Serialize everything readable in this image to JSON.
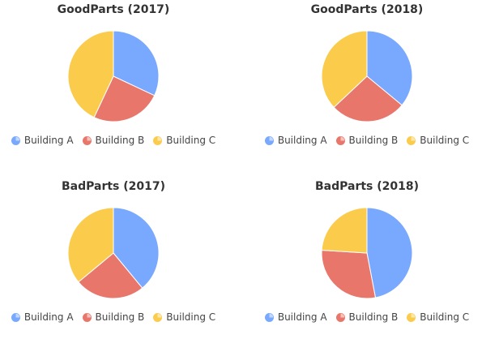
{
  "colors": {
    "Building A": "#79a8ff",
    "Building B": "#e8766b",
    "Building C": "#fbcb4c"
  },
  "chart_data": [
    {
      "type": "pie",
      "title": "GoodParts (2017)",
      "categories": [
        "Building A",
        "Building B",
        "Building C"
      ],
      "values": [
        32,
        25,
        43
      ],
      "legend": "bottom"
    },
    {
      "type": "pie",
      "title": "GoodParts (2018)",
      "categories": [
        "Building A",
        "Building B",
        "Building C"
      ],
      "values": [
        36,
        27,
        37
      ],
      "legend": "bottom"
    },
    {
      "type": "pie",
      "title": "BadParts (2017)",
      "categories": [
        "Building A",
        "Building B",
        "Building C"
      ],
      "values": [
        39,
        25,
        36
      ],
      "legend": "bottom"
    },
    {
      "type": "pie",
      "title": "BadParts (2018)",
      "categories": [
        "Building A",
        "Building B",
        "Building C"
      ],
      "values": [
        47,
        29,
        24
      ],
      "legend": "bottom"
    }
  ]
}
